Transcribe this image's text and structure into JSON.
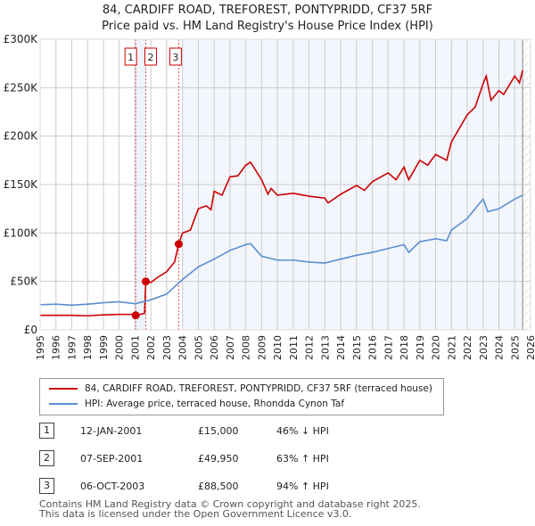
{
  "chart_data": {
    "type": "line",
    "title": "84, CARDIFF ROAD, TREFOREST, PONTYPRIDD, CF37 5RF",
    "subtitle": "Price paid vs. HM Land Registry's House Price Index (HPI)",
    "xlim": [
      1995,
      2026
    ],
    "ylim": [
      0,
      300000
    ],
    "x_ticks": [
      "1995",
      "1996",
      "1997",
      "1998",
      "1999",
      "2000",
      "2001",
      "2002",
      "2003",
      "2004",
      "2005",
      "2006",
      "2007",
      "2008",
      "2009",
      "2010",
      "2011",
      "2012",
      "2013",
      "2014",
      "2015",
      "2016",
      "2017",
      "2018",
      "2019",
      "2020",
      "2021",
      "2022",
      "2023",
      "2024",
      "2025",
      "2026"
    ],
    "y_ticks": [
      {
        "v": 0,
        "l": "£0"
      },
      {
        "v": 50000,
        "l": "£50K"
      },
      {
        "v": 100000,
        "l": "£100K"
      },
      {
        "v": 150000,
        "l": "£150K"
      },
      {
        "v": 200000,
        "l": "£200K"
      },
      {
        "v": 250000,
        "l": "£250K"
      },
      {
        "v": 300000,
        "l": "£300K"
      }
    ],
    "grid": true,
    "series": [
      {
        "name": "84, CARDIFF ROAD, TREFOREST, PONTYPRIDD, CF37 5RF (terraced house)",
        "color": "#cc0000",
        "x": [
          1995,
          1996,
          1997,
          1998,
          1999,
          2000,
          2000.9,
          2001.04,
          2001.6,
          2001.68,
          2002,
          2002.5,
          2003,
          2003.5,
          2003.76,
          2004,
          2004.5,
          2005,
          2005.5,
          2005.8,
          2006,
          2006.5,
          2007,
          2007.5,
          2008,
          2008.3,
          2009,
          2009.4,
          2009.6,
          2010,
          2011,
          2012,
          2013,
          2013.2,
          2014,
          2015,
          2015.5,
          2016,
          2017,
          2017.5,
          2018,
          2018.3,
          2019,
          2019.5,
          2020,
          2020.7,
          2021,
          2022,
          2022.5,
          2023,
          2023.2,
          2023.5,
          2024,
          2024.3,
          2025,
          2025.3,
          2025.5
        ],
        "y": [
          15000,
          15000,
          15000,
          14500,
          15500,
          16000,
          16000,
          15000,
          17000,
          49950,
          49000,
          55000,
          60000,
          70000,
          88500,
          100000,
          103000,
          125000,
          128000,
          124000,
          143000,
          139000,
          158000,
          159000,
          170000,
          173000,
          155000,
          140000,
          146000,
          139000,
          141000,
          138000,
          136000,
          131000,
          140000,
          149000,
          144000,
          153000,
          162000,
          155000,
          168000,
          155000,
          175000,
          170000,
          181000,
          175000,
          194000,
          222000,
          230000,
          254000,
          262000,
          237000,
          247000,
          243000,
          262000,
          255000,
          268000
        ]
      },
      {
        "name": "HPI: Average price, terraced house, Rhondda Cynon Taf",
        "color": "#5b8fd0",
        "x": [
          1995,
          1996,
          1997,
          1998,
          1999,
          2000,
          2001,
          2002,
          2003,
          2004,
          2005,
          2006,
          2007,
          2008,
          2008.3,
          2009,
          2010,
          2011,
          2012,
          2013,
          2014,
          2015,
          2016,
          2017,
          2018,
          2018.3,
          2019,
          2020,
          2020.7,
          2021,
          2022,
          2023,
          2023.3,
          2024,
          2025,
          2025.5
        ],
        "y": [
          26000,
          26500,
          25500,
          26500,
          28000,
          29000,
          27000,
          31000,
          37000,
          52000,
          65000,
          73000,
          82000,
          88000,
          89000,
          76000,
          72000,
          72000,
          70000,
          69000,
          73000,
          77000,
          80000,
          84000,
          88000,
          80000,
          91000,
          94000,
          92000,
          103000,
          115000,
          135000,
          122000,
          125000,
          135000,
          139000
        ]
      }
    ],
    "sales": [
      {
        "id": "1",
        "x": 2001.04,
        "y": 15000
      },
      {
        "id": "2",
        "x": 2001.68,
        "y": 49950
      },
      {
        "id": "3",
        "x": 2003.76,
        "y": 88500
      }
    ],
    "legend_placement": "bottom"
  },
  "legend": {
    "property": "84, CARDIFF ROAD, TREFOREST, PONTYPRIDD, CF37 5RF (terraced house)",
    "hpi": "HPI: Average price, terraced house, Rhondda Cynon Taf"
  },
  "transactions": [
    {
      "id": "1",
      "date": "12-JAN-2001",
      "price": "£15,000",
      "hpi": "46% ↓ HPI"
    },
    {
      "id": "2",
      "date": "07-SEP-2001",
      "price": "£49,950",
      "hpi": "63% ↑ HPI"
    },
    {
      "id": "3",
      "date": "06-OCT-2003",
      "price": "£88,500",
      "hpi": "94% ↑ HPI"
    }
  ],
  "footer": {
    "line1": "Contains HM Land Registry data © Crown copyright and database right 2025.",
    "line2": "This data is licensed under the Open Government Licence v3.0."
  }
}
